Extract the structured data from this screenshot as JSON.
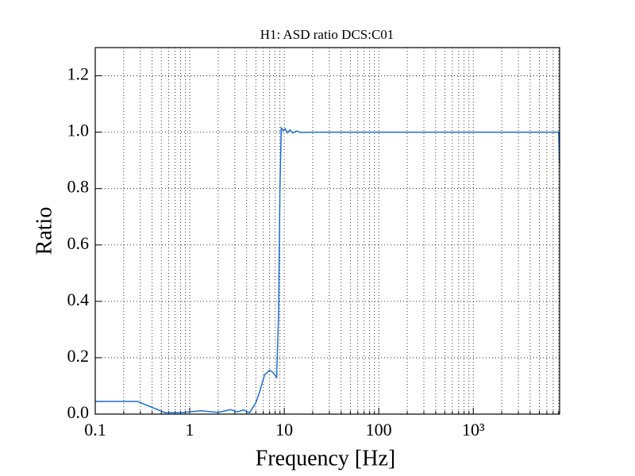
{
  "chart_data": {
    "type": "line",
    "title": "H1: ASD ratio DCS:C01",
    "x_label": "Frequency [Hz]",
    "y_label": "Ratio",
    "log_x": true,
    "grid": true,
    "xlim": [
      0.1,
      8192
    ],
    "ylim": [
      0,
      1.3
    ],
    "xticks": [
      0.1,
      1,
      10,
      100,
      {
        "value": 1000,
        "label": "10³"
      }
    ],
    "xminorticks": [
      0.2,
      0.3,
      0.4,
      0.5,
      0.6,
      0.7,
      0.8,
      0.9,
      2,
      3,
      4,
      5,
      6,
      7,
      8,
      9,
      20,
      30,
      40,
      50,
      60,
      70,
      80,
      90,
      200,
      300,
      400,
      500,
      600,
      700,
      800,
      900,
      2000,
      3000,
      4000,
      5000,
      6000,
      7000,
      8000
    ],
    "yticks": [
      {
        "value": 0,
        "label": "0.0"
      },
      0.2,
      0.4,
      0.6,
      0.8,
      {
        "value": 1,
        "label": "1.0"
      },
      1.2
    ],
    "series": [
      {
        "color": "#1a6fd4",
        "x": [
          0.1,
          0.28,
          0.55,
          0.8,
          1.3,
          2,
          2.7,
          3.2,
          3.7,
          4.3,
          5,
          5.5,
          6.2,
          7,
          7.5,
          8.3,
          8.7,
          9.0,
          9.3,
          9.8,
          10.2,
          10.8,
          11.5,
          12.3,
          13.5,
          15,
          20,
          8000,
          8192
        ],
        "values": [
          0.045,
          0.045,
          0.005,
          0.005,
          0.012,
          0.006,
          0.016,
          0.008,
          0.015,
          0.005,
          0.04,
          0.08,
          0.14,
          0.155,
          0.15,
          0.13,
          0.35,
          0.8,
          1.015,
          1.005,
          1.012,
          0.998,
          1.008,
          0.997,
          1.004,
          0.999,
          1.0,
          1.0,
          0.89
        ]
      }
    ]
  }
}
